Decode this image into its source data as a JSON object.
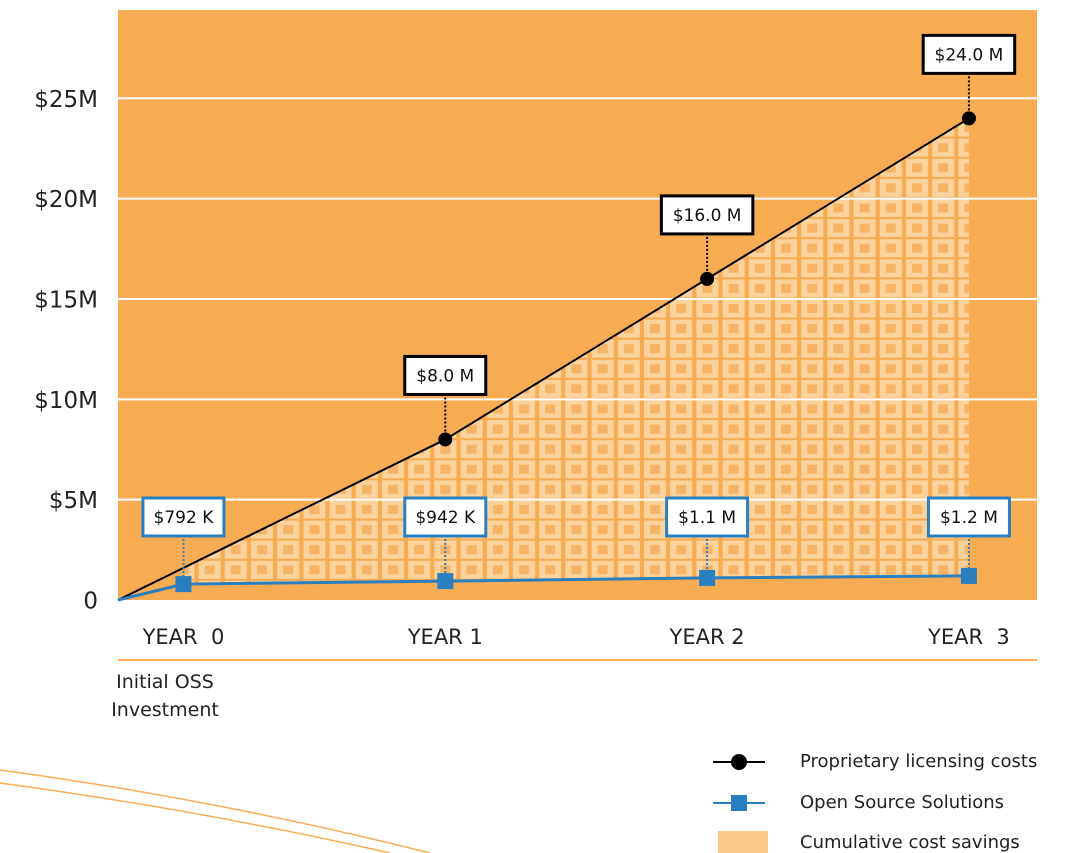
{
  "chart_data": {
    "type": "line",
    "x_note": "Initial OSS Investment",
    "xlim": [
      -0.25,
      3.26
    ],
    "xticks": [
      {
        "value": 0,
        "label": "YEAR  0"
      },
      {
        "value": 1,
        "label": "YEAR 1"
      },
      {
        "value": 2,
        "label": "YEAR 2"
      },
      {
        "value": 3,
        "label": "YEAR  3"
      }
    ],
    "ylim": [
      0,
      29.4
    ],
    "yticks": [
      0,
      {
        "value": 5,
        "label": "$5M"
      },
      {
        "value": 10,
        "label": "$10M"
      },
      {
        "value": 15,
        "label": "$15M"
      },
      {
        "value": 20,
        "label": "$20M"
      },
      {
        "value": 25,
        "label": "$25M"
      }
    ],
    "grid": true,
    "background": "#f7ac54",
    "series": [
      {
        "name": "Proprietary licensing costs",
        "color": "#000000",
        "marker": "circle",
        "label_border": "#000000",
        "x": [
          -0.25,
          1,
          2,
          3
        ],
        "values": [
          0,
          8,
          16,
          24
        ],
        "value_labels": [
          null,
          "$8.0 M",
          "$16.0 M",
          "$24.0 M"
        ]
      },
      {
        "name": "Open Source Solutions",
        "color": "#2a7fc0",
        "marker": "square",
        "label_border": "#2a7fc0",
        "x": [
          -0.25,
          0,
          1,
          2,
          3
        ],
        "values": [
          0,
          0.792,
          0.942,
          1.1,
          1.2
        ],
        "value_labels": [
          null,
          "$792 K",
          "$942 K",
          "$1.1 M",
          "$1.2 M"
        ]
      }
    ],
    "fill_between": {
      "name": "Cumulative cost savings"
    },
    "legend": "bottom-right"
  }
}
